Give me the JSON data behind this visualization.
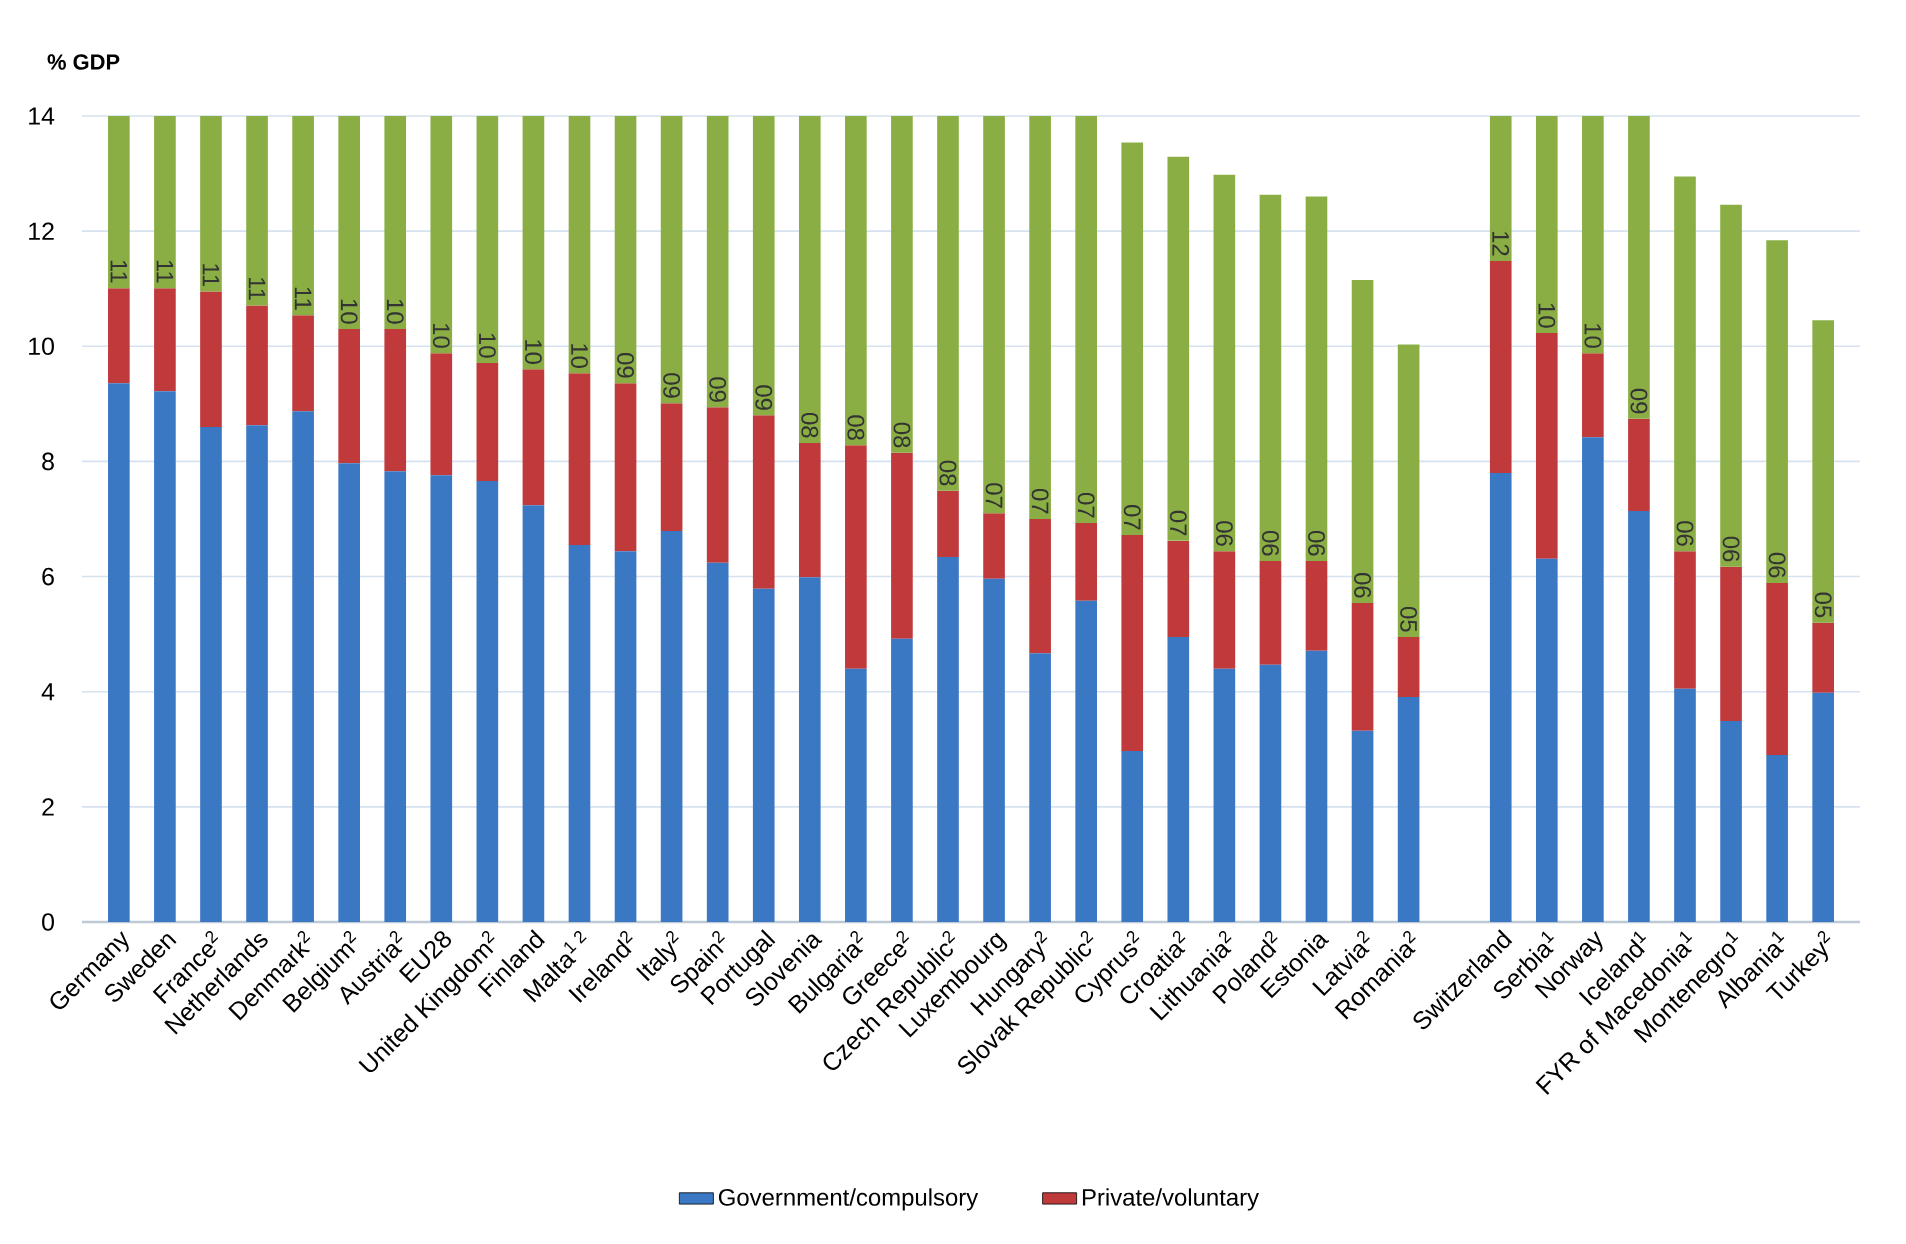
{
  "chart_data": {
    "type": "bar",
    "stacked": true,
    "ylabel": "% GDP",
    "categories": [
      "Germany",
      "Sweden",
      "France$^{2}$",
      "Netherlands",
      "Denmark$^{2}$",
      "Belgium$^{2}$",
      "Austria$^{2}$",
      "EU28",
      "United Kingdom$^{2}$",
      "Finland",
      "Malta$^{1 2}$",
      "Ireland$^{2}$",
      "Italy$^{2}$",
      "Spain$^{2}$",
      "Portugal",
      "Slovenia",
      "Bulgaria$^{2}$",
      "Greece$^{2}$",
      "Czech Republic$^{2}$",
      "Luxembourg",
      "Hungary$^{2}$",
      "Slovak Republic$^{2}$",
      "Cyprus$^{2}$",
      "Croatia$^{2}$",
      "Lithuania$^{2}$",
      "Poland$^{2}$",
      "Estonia",
      "Latvia$^{2}$",
      "Romania$^{2}$",
      null,
      "Switzerland",
      "Serbia$^{1}$",
      "Norway",
      "Iceland$^{1}$",
      "FYR of Macedonia$^{1}$",
      "Montenegro$^{1}$",
      "Albania$^{1}$",
      "Turkey$^{2}$"
    ],
    "series": [
      {
        "name": "Government/compulsory",
        "color": "#3b78c4",
        "values": [
          9.36,
          9.22,
          8.6,
          8.63,
          8.87,
          7.97,
          7.83,
          7.76,
          7.66,
          7.24,
          6.55,
          6.44,
          6.79,
          6.24,
          5.79,
          5.99,
          4.4,
          4.92,
          6.34,
          5.96,
          4.67,
          5.58,
          2.97,
          4.95,
          4.4,
          4.47,
          4.71,
          3.32,
          3.91,
          null,
          7.8,
          6.31,
          8.42,
          7.14,
          4.05,
          3.49,
          2.9,
          3.98
        ]
      },
      {
        "name": "Private/voluntary",
        "color": "#c0393b",
        "values": [
          1.65,
          1.79,
          2.35,
          2.08,
          1.67,
          2.33,
          2.47,
          2.12,
          2.05,
          2.36,
          2.98,
          2.92,
          2.22,
          2.7,
          3.01,
          2.33,
          3.88,
          3.23,
          1.15,
          1.14,
          2.33,
          1.35,
          3.75,
          1.67,
          2.04,
          1.8,
          1.56,
          2.22,
          1.04,
          null,
          3.68,
          3.92,
          1.46,
          1.6,
          2.39,
          2.68,
          2.99,
          1.22
        ]
      },
      {
        "color": "#8aae44",
        "base": [
          11.01,
          11.01,
          10.95,
          10.71,
          10.54,
          10.3,
          10.3,
          9.88,
          9.71,
          9.6,
          9.53,
          9.36,
          9.01,
          8.94,
          8.8,
          8.32,
          8.28,
          8.15,
          7.49,
          7.1,
          7.0,
          6.93,
          6.72,
          6.62,
          6.44,
          6.27,
          6.27,
          5.54,
          4.95,
          null,
          11.48,
          10.23,
          9.88,
          8.74,
          6.44,
          6.17,
          5.89,
          5.2
        ],
        "values": [
          2.99,
          2.99,
          3.05,
          3.29,
          3.46,
          3.7,
          3.7,
          4.12,
          4.29,
          4.4,
          4.47,
          4.64,
          4.99,
          5.06,
          5.2,
          5.68,
          5.72,
          5.85,
          6.51,
          6.9,
          7.0,
          7.07,
          6.82,
          6.67,
          6.54,
          6.36,
          6.33,
          5.61,
          5.08,
          null,
          2.52,
          3.77,
          4.12,
          5.26,
          6.51,
          6.29,
          5.95,
          5.25
        ]
      }
    ],
    "annotations": [
      {
        "text": "11",
        "x": "Germany",
        "y": 11.01
      },
      {
        "text": "11",
        "x": "Sweden",
        "y": 11.01
      },
      {
        "text": "11",
        "x": "France$^{2}$",
        "y": 10.95
      },
      {
        "text": "11",
        "x": "Netherlands",
        "y": 10.71
      },
      {
        "text": "11",
        "x": "Denmark$^{2}$",
        "y": 10.54
      },
      {
        "text": "10",
        "x": "Belgium$^{2}$",
        "y": 10.3
      },
      {
        "text": "10",
        "x": "Austria$^{2}$",
        "y": 10.3
      },
      {
        "text": "10",
        "x": "EU28",
        "y": 9.88
      },
      {
        "text": "10",
        "x": "United Kingdom$^{2}$",
        "y": 9.71
      },
      {
        "text": "10",
        "x": "Finland",
        "y": 9.6
      },
      {
        "text": "10",
        "x": "Malta$^{1 2}$",
        "y": 9.53
      },
      {
        "text": "09",
        "x": "Ireland$^{2}$",
        "y": 9.36
      },
      {
        "text": "09",
        "x": "Italy$^{2}$",
        "y": 9.01
      },
      {
        "text": "09",
        "x": "Spain$^{2}$",
        "y": 8.94
      },
      {
        "text": "09",
        "x": "Portugal",
        "y": 8.8
      },
      {
        "text": "08",
        "x": "Slovenia",
        "y": 8.32
      },
      {
        "text": "08",
        "x": "Bulgaria$^{2}$",
        "y": 8.28
      },
      {
        "text": "08",
        "x": "Greece$^{2}$",
        "y": 8.15
      },
      {
        "text": "08",
        "x": "Czech Republic$^{2}$",
        "y": 7.49
      },
      {
        "text": "07",
        "x": "Luxembourg",
        "y": 7.1
      },
      {
        "text": "07",
        "x": "Hungary$^{2}$",
        "y": 7.0
      },
      {
        "text": "07",
        "x": "Slovak Republic$^{2}$",
        "y": 6.93
      },
      {
        "text": "07",
        "x": "Cyprus$^{2}$",
        "y": 6.72
      },
      {
        "text": "07",
        "x": "Croatia$^{2}$",
        "y": 6.62
      },
      {
        "text": "06",
        "x": "Lithuania$^{2}$",
        "y": 6.44
      },
      {
        "text": "06",
        "x": "Poland$^{2}$",
        "y": 6.27
      },
      {
        "text": "06",
        "x": "Estonia",
        "y": 6.27
      },
      {
        "text": "06",
        "x": "Latvia$^{2}$",
        "y": 5.54
      },
      {
        "text": "05",
        "x": "Romania$^{2}$",
        "y": 4.95
      },
      {
        "text": "12",
        "x": "Switzerland",
        "y": 11.48
      },
      {
        "text": "10",
        "x": "Serbia$^{1}$",
        "y": 10.23
      },
      {
        "text": "10",
        "x": "Norway",
        "y": 9.88
      },
      {
        "text": "09",
        "x": "Iceland$^{1}$",
        "y": 8.74
      },
      {
        "text": "06",
        "x": "FYR of Macedonia$^{1}$",
        "y": 6.44
      },
      {
        "text": "06",
        "x": "Montenegro$^{1}$",
        "y": 6.17
      },
      {
        "text": "06",
        "x": "Albania$^{1}$",
        "y": 5.89
      },
      {
        "text": "05",
        "x": "Turkey$^{2}$",
        "y": 5.2
      }
    ],
    "ylim": [
      0,
      14
    ],
    "yticks": [
      0,
      2,
      4,
      6,
      8,
      10,
      12,
      14
    ],
    "grid": "y",
    "legend": "bottom"
  }
}
